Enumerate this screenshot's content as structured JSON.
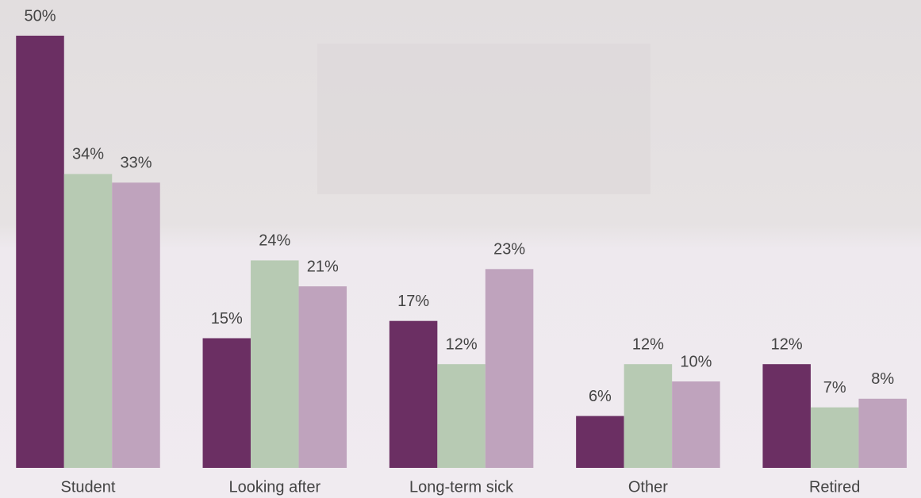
{
  "chart_data": {
    "type": "bar",
    "categories": [
      "Student",
      "Looking after",
      "Long-term sick",
      "Other",
      "Retired"
    ],
    "series": [
      {
        "color": "#6b2f63",
        "values": [
          50,
          15,
          17,
          6,
          12
        ],
        "value_labels": [
          "50%",
          "15%",
          "17%",
          "6%",
          "12%"
        ]
      },
      {
        "color": "#b7cab3",
        "values": [
          34,
          24,
          12,
          12,
          7
        ],
        "value_labels": [
          "34%",
          "24%",
          "12%",
          "12%",
          "7%"
        ]
      },
      {
        "color": "#bfa3bd",
        "values": [
          33,
          21,
          23,
          10,
          8
        ],
        "value_labels": [
          "33%",
          "21%",
          "23%",
          "10%",
          "8%"
        ]
      }
    ]
  }
}
